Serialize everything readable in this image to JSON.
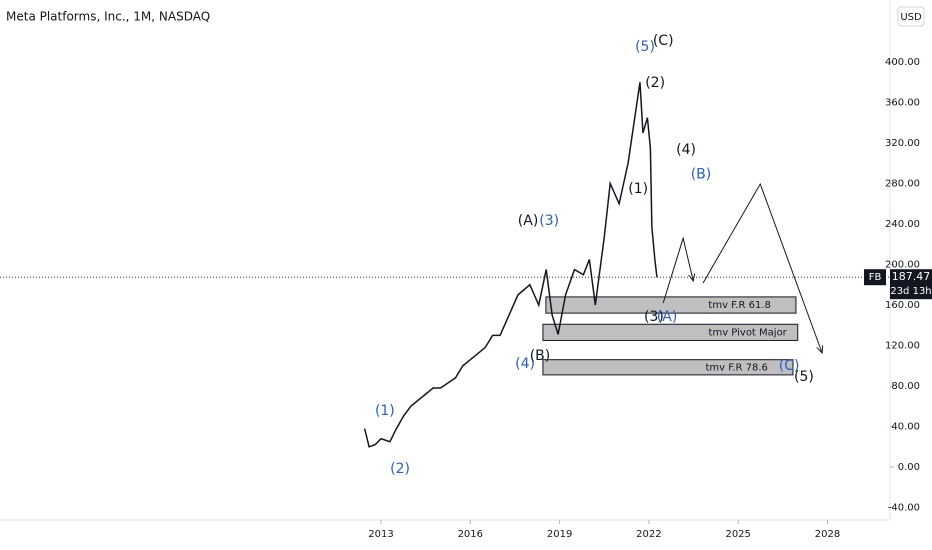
{
  "chart_data": {
    "type": "line",
    "title": "Meta Platforms, Inc., 1M, NASDAQ",
    "currency": "USD",
    "countdown": "23d 13h",
    "series": [
      {
        "name": "FB",
        "color": "#131722",
        "x": [
          2012.45,
          2012.6,
          2012.8,
          2013.0,
          2013.3,
          2013.5,
          2013.75,
          2014.0,
          2014.5,
          2014.75,
          2015.0,
          2015.5,
          2015.75,
          2016.0,
          2016.5,
          2016.75,
          2017.0,
          2017.3,
          2017.6,
          2018.0,
          2018.3,
          2018.55,
          2018.75,
          2018.95,
          2019.2,
          2019.5,
          2019.8,
          2020.0,
          2020.2,
          2020.5,
          2020.7,
          2021.0,
          2021.3,
          2021.5,
          2021.7,
          2021.8,
          2021.95,
          2022.05,
          2022.1,
          2022.2,
          2022.27
        ],
        "values": [
          38,
          20,
          22,
          28,
          25,
          37,
          50,
          60,
          72,
          78,
          78,
          88,
          100,
          106,
          118,
          130,
          130,
          150,
          170,
          180,
          160,
          195,
          150,
          131,
          170,
          195,
          190,
          205,
          160,
          227,
          280,
          260,
          300,
          340,
          380,
          330,
          345,
          315,
          237,
          205,
          187.47
        ]
      }
    ],
    "xlim": [
      2000.2,
      2030.1
    ],
    "xticks": [
      2013,
      2016,
      2019,
      2022,
      2025,
      2028
    ],
    "ylim": [
      -52.3,
      461.2
    ],
    "yticks": [
      {
        "value": -40,
        "label": "-40.00"
      },
      {
        "value": 0,
        "label": "0.00"
      },
      {
        "value": 40,
        "label": "40.00"
      },
      {
        "value": 80,
        "label": "80.00"
      },
      {
        "value": 120,
        "label": "120.00"
      },
      {
        "value": 160,
        "label": "160.00"
      },
      {
        "value": 200,
        "label": "200.00"
      },
      {
        "value": 240,
        "label": "240.00"
      },
      {
        "value": 280,
        "label": "280.00"
      },
      {
        "value": 320,
        "label": "320.00"
      },
      {
        "value": 360,
        "label": "360.00"
      },
      {
        "value": 400,
        "label": "400.00"
      }
    ],
    "grid": false,
    "zones": [
      {
        "label": "tmv F.R 61.8",
        "from": 152,
        "to": 168,
        "x0": 2018.54,
        "x1": 2026.94
      },
      {
        "label": "tmv Pivot Major",
        "from": 125,
        "to": 141,
        "x0": 2018.44,
        "x1": 2027.0
      },
      {
        "label": "tmv F.R 78.6",
        "from": 91,
        "to": 106,
        "x0": 2018.44,
        "x1": 2026.84
      }
    ],
    "projections": [
      {
        "x": [
          2022.48,
          2023.15,
          2023.49
        ],
        "y": [
          162,
          226,
          183.7
        ]
      },
      {
        "x": [
          2023.82,
          2025.74,
          2027.82
        ],
        "y": [
          181.7,
          279.5,
          112.6
        ]
      }
    ],
    "annotations": [
      {
        "text": "(5)",
        "x": 2021.87,
        "y": 414.8,
        "color": "#2a5fc9"
      },
      {
        "text": "(C)",
        "x": 2022.48,
        "y": 420.7,
        "color": "#131722"
      },
      {
        "text": "(2)",
        "x": 2022.21,
        "y": 379,
        "color": "#131722"
      },
      {
        "text": "(4)",
        "x": 2023.25,
        "y": 313,
        "color": "#131722"
      },
      {
        "text": "(B)",
        "x": 2023.75,
        "y": 289,
        "color": "#2a5fc9"
      },
      {
        "text": "(1)",
        "x": 2021.64,
        "y": 274.6,
        "color": "#131722"
      },
      {
        "text": "(A)",
        "x": 2017.94,
        "y": 243,
        "color": "#131722"
      },
      {
        "text": "(3)",
        "x": 2018.65,
        "y": 243,
        "color": "#2a5fc9"
      },
      {
        "text": "(3)",
        "x": 2022.17,
        "y": 148,
        "color": "#131722"
      },
      {
        "text": "(A)",
        "x": 2022.61,
        "y": 148,
        "color": "#2a5fc9"
      },
      {
        "text": "(4)",
        "x": 2017.84,
        "y": 101.7,
        "color": "#2a5fc9"
      },
      {
        "text": "(B)",
        "x": 2018.34,
        "y": 109.6,
        "color": "#131722"
      },
      {
        "text": "(C)",
        "x": 2026.71,
        "y": 99.8,
        "color": "#2a5fc9"
      },
      {
        "text": "(5)",
        "x": 2027.21,
        "y": 88.9,
        "color": "#131722"
      },
      {
        "text": "(1)",
        "x": 2013.13,
        "y": 55.3,
        "color": "#2a5fc9"
      },
      {
        "text": "(2)",
        "x": 2013.64,
        "y": -2,
        "color": "#2a5fc9"
      }
    ]
  }
}
